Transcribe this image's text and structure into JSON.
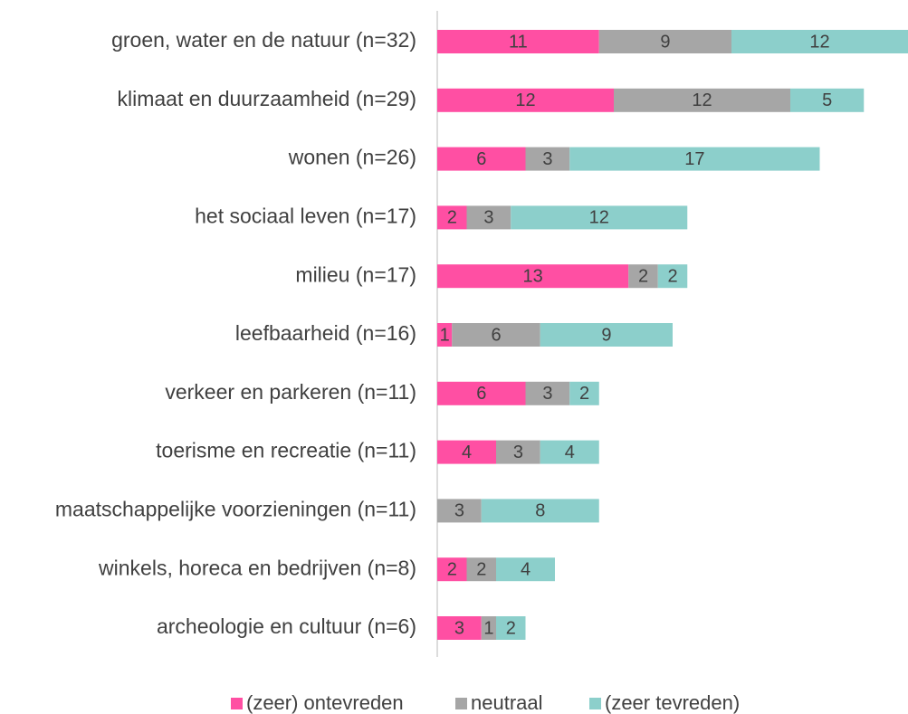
{
  "chart_data": {
    "type": "stacked_barh",
    "categories": [
      "groen, water en de natuur (n=32)",
      "klimaat en duurzaamheid (n=29)",
      "wonen (n=26)",
      "het sociaal leven (n=17)",
      "milieu (n=17)",
      "leefbaarheid (n=16)",
      "verkeer en parkeren (n=11)",
      "toerisme en recreatie (n=11)",
      "maatschappelijke voorzieningen (n=11)",
      "winkels, horeca en bedrijven (n=8)",
      "archeologie en cultuur (n=6)"
    ],
    "series": [
      {
        "name": "(zeer) ontevreden",
        "color": "#ff4fa3",
        "values": [
          11,
          12,
          6,
          2,
          13,
          1,
          6,
          4,
          0,
          2,
          3
        ]
      },
      {
        "name": "neutraal",
        "color": "#a6a6a6",
        "values": [
          9,
          12,
          3,
          3,
          2,
          6,
          3,
          3,
          3,
          2,
          1
        ]
      },
      {
        "name": "(zeer tevreden)",
        "color": "#8ccfcb",
        "values": [
          12,
          5,
          17,
          12,
          2,
          9,
          2,
          4,
          8,
          4,
          2
        ]
      }
    ],
    "legend": "bottom"
  }
}
